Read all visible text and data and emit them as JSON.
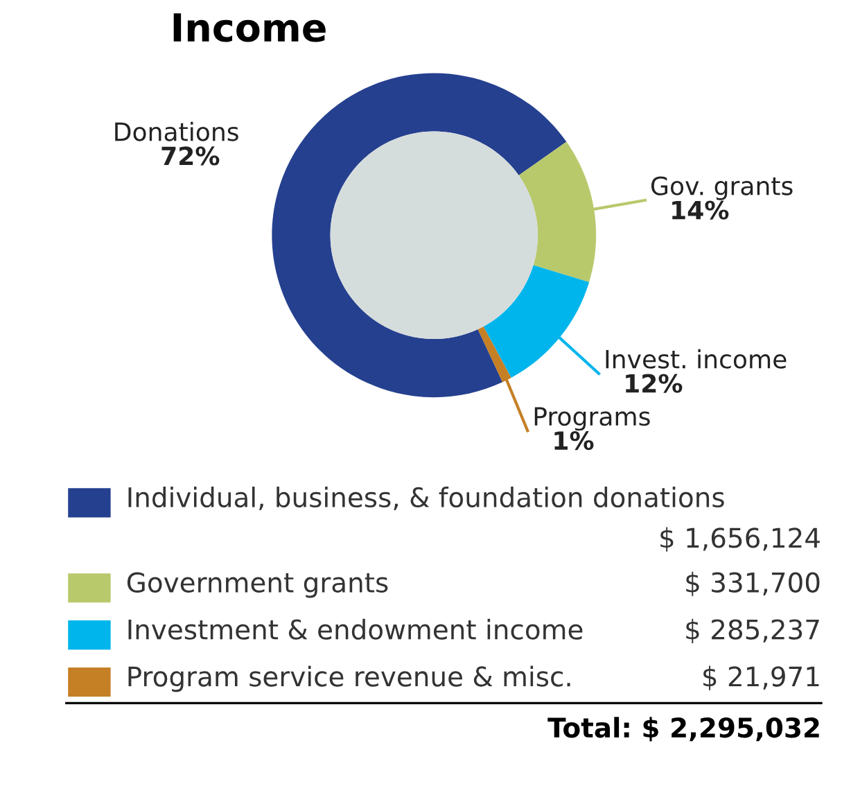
{
  "chart_data": {
    "type": "donut",
    "title": "Income",
    "categories": [
      "Individual, business, & foundation donations",
      "Government grants",
      "Investment & endowment income",
      "Program service revenue & misc."
    ],
    "values": [
      1656124,
      331700,
      285237,
      21971
    ],
    "colors": [
      "#25408f",
      "#b8c96c",
      "#00b5ec",
      "#c57f25"
    ],
    "value_labels": [
      "$ 1,656,124",
      "$ 331,700",
      "$ 285,237",
      "$ 21,971"
    ],
    "annotations": [
      "Donations\n72%",
      "Gov. grants\n14%",
      "Invest. income\n12%",
      "Programs\n1%"
    ],
    "totals": [
      "Total: $ 2,295,032"
    ],
    "legend": "bottom"
  }
}
